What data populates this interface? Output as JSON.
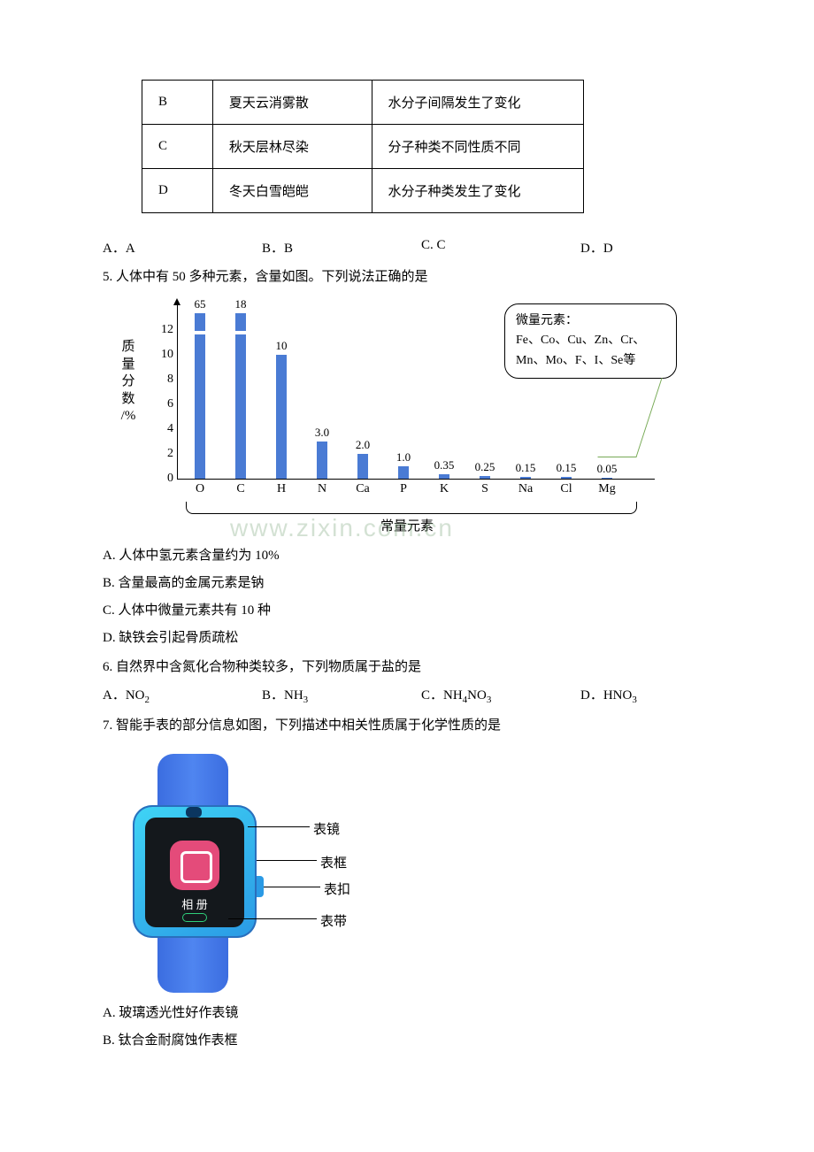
{
  "table": {
    "rows": [
      {
        "key": "B",
        "phrase": "夏天云消雾散",
        "explain": "水分子间隔发生了变化"
      },
      {
        "key": "C",
        "phrase": "秋天层林尽染",
        "explain": "分子种类不同性质不同"
      },
      {
        "key": "D",
        "phrase": "冬天白雪皑皑",
        "explain": "水分子种类发生了变化"
      }
    ]
  },
  "q4_opts": {
    "a": "A．A",
    "b": "B．B",
    "c": "C. C",
    "d": "D．D"
  },
  "q5": {
    "text": "5. 人体中有 50 多种元素，含量如图。下列说法正确的是",
    "chart": {
      "ylabel": "质量分数/%",
      "yticks": [
        0,
        2,
        4,
        6,
        8,
        10,
        12
      ],
      "bars": [
        {
          "x": "O",
          "v": 65,
          "lbl": "65"
        },
        {
          "x": "C",
          "v": 18,
          "lbl": "18"
        },
        {
          "x": "H",
          "v": 10,
          "lbl": "10"
        },
        {
          "x": "N",
          "v": 3.0,
          "lbl": "3.0"
        },
        {
          "x": "Ca",
          "v": 2.0,
          "lbl": "2.0"
        },
        {
          "x": "P",
          "v": 1.0,
          "lbl": "1.0"
        },
        {
          "x": "K",
          "v": 0.35,
          "lbl": "0.35"
        },
        {
          "x": "S",
          "v": 0.25,
          "lbl": "0.25"
        },
        {
          "x": "Na",
          "v": 0.15,
          "lbl": "0.15"
        },
        {
          "x": "Cl",
          "v": 0.15,
          "lbl": "0.15"
        },
        {
          "x": "Mg",
          "v": 0.05,
          "lbl": "0.05"
        }
      ],
      "colors": {
        "bar": "#4a7bd4",
        "overflow_bar": "#4a7bd4"
      },
      "bracket": "常量元素",
      "speech_title": "微量元素：",
      "speech_body": "Fe、Co、Cu、Zn、Cr、Mn、Mo、F、I、Se等",
      "watermark": "www.zixin.com.cn"
    },
    "opts": {
      "a": "A. 人体中氢元素含量约为 10%",
      "b": "B. 含量最高的金属元素是钠",
      "c": "C. 人体中微量元素共有 10 种",
      "d": "D. 缺铁会引起骨质疏松"
    }
  },
  "q6": {
    "text": "6. 自然界中含氮化合物种类较多，下列物质属于盐的是",
    "opts": {
      "a": "A．NO",
      "a_sub": "2",
      "b": "B．NH",
      "b_sub": "3",
      "c": "C．NH",
      "c_sub1": "4",
      "c_mid": "NO",
      "c_sub2": "3",
      "d": "D．HNO",
      "d_sub": "3"
    }
  },
  "q7": {
    "text": "7. 智能手表的部分信息如图，下列描述中相关性质属于化学性质的是",
    "labels": {
      "mirror": "表镜",
      "frame": "表框",
      "buckle": "表扣",
      "band": "表带",
      "album": "相 册"
    },
    "opts": {
      "a": "A. 玻璃透光性好作表镜",
      "b": "B. 钛合金耐腐蚀作表框"
    }
  }
}
